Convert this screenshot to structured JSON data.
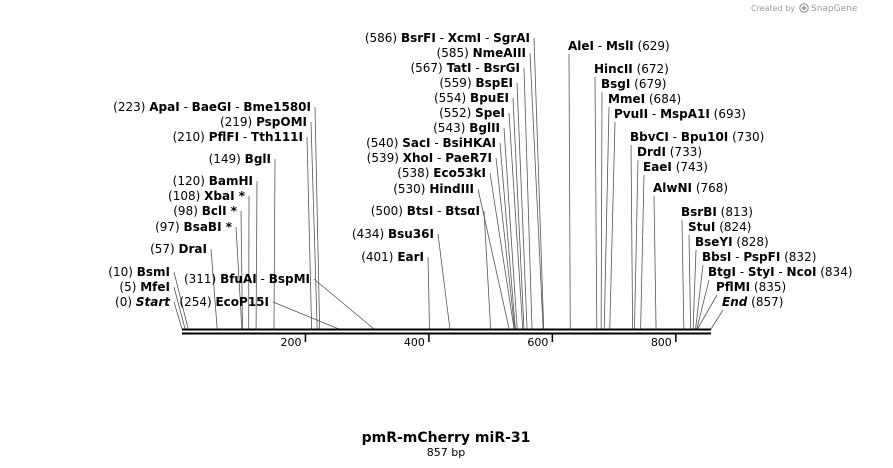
{
  "credit": {
    "prefix": "Created by",
    "brand": "SnapGene"
  },
  "map": {
    "title": "pmR-mCherry miR-31",
    "subtitle": "857 bp",
    "length": 857,
    "axis_ticks": [
      "200",
      "400",
      "600",
      "800"
    ]
  },
  "sites": [
    {
      "pos": 0,
      "pos_text": "(0)",
      "names": [
        "Start"
      ],
      "side": "left",
      "italic": true
    },
    {
      "pos": 5,
      "pos_text": "(5)",
      "names": [
        "MfeI"
      ],
      "side": "left"
    },
    {
      "pos": 10,
      "pos_text": "(10)",
      "names": [
        "BsmI"
      ],
      "side": "left"
    },
    {
      "pos": 57,
      "pos_text": "(57)",
      "names": [
        "DraI"
      ],
      "side": "left"
    },
    {
      "pos": 97,
      "pos_text": "(97)",
      "names": [
        "BsaBI *"
      ],
      "side": "left"
    },
    {
      "pos": 98,
      "pos_text": "(98)",
      "names": [
        "BclI *"
      ],
      "side": "left"
    },
    {
      "pos": 108,
      "pos_text": "(108)",
      "names": [
        "XbaI *"
      ],
      "side": "left"
    },
    {
      "pos": 120,
      "pos_text": "(120)",
      "names": [
        "BamHI"
      ],
      "side": "left"
    },
    {
      "pos": 149,
      "pos_text": "(149)",
      "names": [
        "BglI"
      ],
      "side": "left"
    },
    {
      "pos": 210,
      "pos_text": "(210)",
      "names": [
        "PflFI",
        "Tth111I"
      ],
      "side": "left"
    },
    {
      "pos": 219,
      "pos_text": "(219)",
      "names": [
        "PspOMI"
      ],
      "side": "left"
    },
    {
      "pos": 223,
      "pos_text": "(223)",
      "names": [
        "ApaI",
        "BaeGI",
        "Bme1580I"
      ],
      "side": "left"
    },
    {
      "pos": 254,
      "pos_text": "(254)",
      "names": [
        "EcoP15I"
      ],
      "side": "left"
    },
    {
      "pos": 311,
      "pos_text": "(311)",
      "names": [
        "BfuAI",
        "BspMI"
      ],
      "side": "left"
    },
    {
      "pos": 401,
      "pos_text": "(401)",
      "names": [
        "EarI"
      ],
      "side": "left"
    },
    {
      "pos": 434,
      "pos_text": "(434)",
      "names": [
        "Bsu36I"
      ],
      "side": "left"
    },
    {
      "pos": 500,
      "pos_text": "(500)",
      "names": [
        "BtsI",
        "BtsαI"
      ],
      "side": "left"
    },
    {
      "pos": 530,
      "pos_text": "(530)",
      "names": [
        "HindIII"
      ],
      "side": "left"
    },
    {
      "pos": 538,
      "pos_text": "(538)",
      "names": [
        "Eco53kI"
      ],
      "side": "left"
    },
    {
      "pos": 539,
      "pos_text": "(539)",
      "names": [
        "XhoI",
        "PaeR7I"
      ],
      "side": "left"
    },
    {
      "pos": 540,
      "pos_text": "(540)",
      "names": [
        "SacI",
        "BsiHKAI"
      ],
      "side": "left"
    },
    {
      "pos": 543,
      "pos_text": "(543)",
      "names": [
        "BglII"
      ],
      "side": "left"
    },
    {
      "pos": 552,
      "pos_text": "(552)",
      "names": [
        "SpeI"
      ],
      "side": "left"
    },
    {
      "pos": 554,
      "pos_text": "(554)",
      "names": [
        "BpuEI"
      ],
      "side": "left"
    },
    {
      "pos": 559,
      "pos_text": "(559)",
      "names": [
        "BspEI"
      ],
      "side": "left"
    },
    {
      "pos": 567,
      "pos_text": "(567)",
      "names": [
        "TatI",
        "BsrGI"
      ],
      "side": "left"
    },
    {
      "pos": 585,
      "pos_text": "(585)",
      "names": [
        "NmeAIII"
      ],
      "side": "left"
    },
    {
      "pos": 586,
      "pos_text": "(586)",
      "names": [
        "BsrFI",
        "XcmI",
        "SgrAI"
      ],
      "side": "left"
    },
    {
      "pos": 629,
      "pos_text": "(629)",
      "names": [
        "AleI",
        "MslI"
      ],
      "side": "right"
    },
    {
      "pos": 672,
      "pos_text": "(672)",
      "names": [
        "HincII"
      ],
      "side": "right"
    },
    {
      "pos": 679,
      "pos_text": "(679)",
      "names": [
        "BsgI"
      ],
      "side": "right"
    },
    {
      "pos": 684,
      "pos_text": "(684)",
      "names": [
        "MmeI"
      ],
      "side": "right"
    },
    {
      "pos": 693,
      "pos_text": "(693)",
      "names": [
        "PvuII",
        "MspA1I"
      ],
      "side": "right"
    },
    {
      "pos": 730,
      "pos_text": "(730)",
      "names": [
        "BbvCI",
        "Bpu10I"
      ],
      "side": "right"
    },
    {
      "pos": 733,
      "pos_text": "(733)",
      "names": [
        "DrdI"
      ],
      "side": "right"
    },
    {
      "pos": 743,
      "pos_text": "(743)",
      "names": [
        "EaeI"
      ],
      "side": "right"
    },
    {
      "pos": 768,
      "pos_text": "(768)",
      "names": [
        "AlwNI"
      ],
      "side": "right"
    },
    {
      "pos": 813,
      "pos_text": "(813)",
      "names": [
        "BsrBI"
      ],
      "side": "right"
    },
    {
      "pos": 824,
      "pos_text": "(824)",
      "names": [
        "StuI"
      ],
      "side": "right"
    },
    {
      "pos": 828,
      "pos_text": "(828)",
      "names": [
        "BseYI"
      ],
      "side": "right"
    },
    {
      "pos": 832,
      "pos_text": "(832)",
      "names": [
        "BbsI",
        "PspFI"
      ],
      "side": "right"
    },
    {
      "pos": 834,
      "pos_text": "(834)",
      "names": [
        "BtgI",
        "StyI",
        "NcoI"
      ],
      "side": "right"
    },
    {
      "pos": 835,
      "pos_text": "(835)",
      "names": [
        "PflMI"
      ],
      "side": "right"
    },
    {
      "pos": 857,
      "pos_text": "(857)",
      "names": [
        "End"
      ],
      "side": "right",
      "italic": true
    }
  ]
}
